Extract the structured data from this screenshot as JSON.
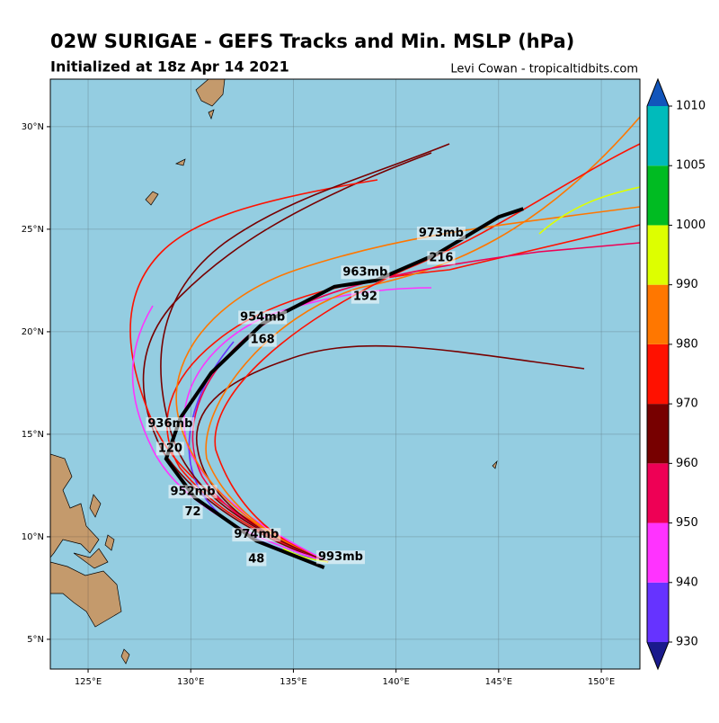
{
  "header": {
    "title": "02W SURIGAE - GEFS Tracks and Min. MSLP (hPa)",
    "subtitle": "Initialized at 18z Apr 14 2021",
    "credit": "Levi Cowan - tropicaltidbits.com"
  },
  "map": {
    "lonlim": [
      123.16,
      151.88
    ],
    "latlim": [
      3.55,
      32.32
    ],
    "lonticks": [
      {
        "value": 125,
        "label": "125°E"
      },
      {
        "value": 130,
        "label": "130°E"
      },
      {
        "value": 135,
        "label": "135°E"
      },
      {
        "value": 140,
        "label": "140°E"
      },
      {
        "value": 145,
        "label": "145°E"
      },
      {
        "value": 150,
        "label": "150°E"
      }
    ],
    "latticks": [
      {
        "value": 5,
        "label": "5°N"
      },
      {
        "value": 10,
        "label": "10°N"
      },
      {
        "value": 15,
        "label": "15°N"
      },
      {
        "value": 20,
        "label": "20°N"
      },
      {
        "value": 25,
        "label": "25°N"
      },
      {
        "value": 30,
        "label": "30°N"
      }
    ],
    "mean_track": {
      "lon": [
        136.5,
        133.2,
        130.2,
        128.8,
        129.5,
        131.0,
        133.5,
        137.0,
        139.0,
        142.0,
        145.0,
        146.2
      ],
      "lat": [
        8.5,
        9.8,
        11.9,
        13.8,
        15.8,
        18.0,
        20.4,
        22.2,
        22.5,
        23.8,
        25.6,
        26.0
      ]
    },
    "labels": [
      {
        "text": "993mb",
        "lon": 137.3,
        "lat": 9.0
      },
      {
        "text": "48",
        "lon": 133.2,
        "lat": 8.9
      },
      {
        "text": "974mb",
        "lon": 133.2,
        "lat": 10.1
      },
      {
        "text": "72",
        "lon": 130.1,
        "lat": 11.2
      },
      {
        "text": "952mb",
        "lon": 130.1,
        "lat": 12.2
      },
      {
        "text": "120",
        "lon": 129.0,
        "lat": 14.3
      },
      {
        "text": "936mb",
        "lon": 129.0,
        "lat": 15.5
      },
      {
        "text": "168",
        "lon": 133.5,
        "lat": 19.6
      },
      {
        "text": "954mb",
        "lon": 133.5,
        "lat": 20.7
      },
      {
        "text": "192",
        "lon": 138.5,
        "lat": 21.7
      },
      {
        "text": "963mb",
        "lon": 138.5,
        "lat": 22.9
      },
      {
        "text": "216",
        "lon": 142.2,
        "lat": 23.6
      },
      {
        "text": "973mb",
        "lon": 142.2,
        "lat": 24.8
      }
    ]
  },
  "colorbar": {
    "levels": [
      930,
      940,
      950,
      960,
      970,
      980,
      990,
      1000,
      1005,
      1010
    ],
    "colors": [
      "#6633ff",
      "#ff33ff",
      "#ee0055",
      "#770000",
      "#ff1100",
      "#ff7700",
      "#ddff00",
      "#00bb22",
      "#00bbbb"
    ],
    "under": "#1a1a8c",
    "over": "#1155bb"
  }
}
